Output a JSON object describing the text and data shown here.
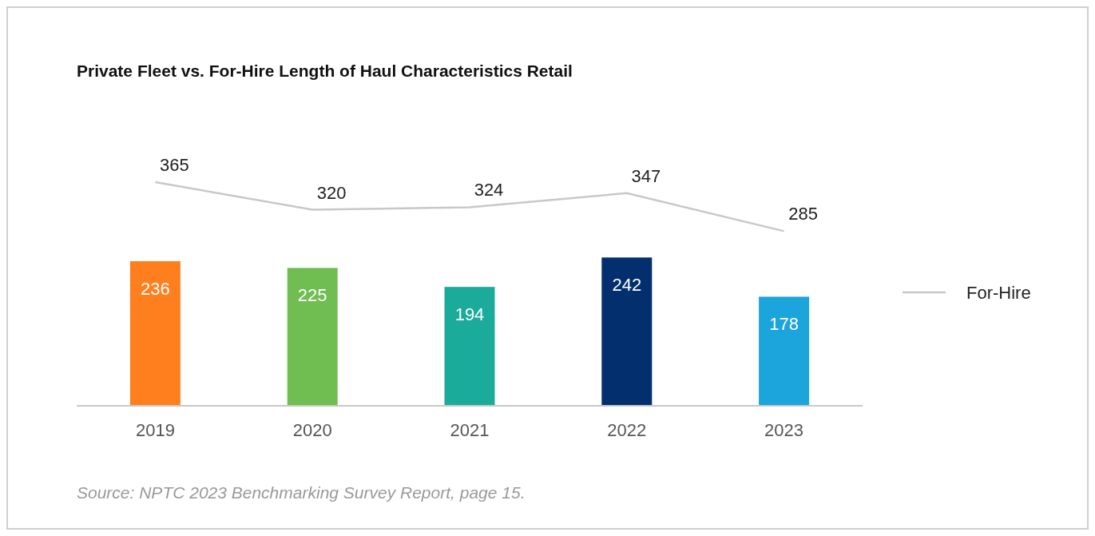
{
  "chart_data": {
    "type": "bar",
    "title": "Private Fleet vs. For-Hire Length of Haul Characteristics Retail",
    "categories": [
      "2019",
      "2020",
      "2021",
      "2022",
      "2023"
    ],
    "series": [
      {
        "colors": [
          "#ff7f1e",
          "#70bd52",
          "#1aab9b",
          "#032f6e",
          "#1ca4dc"
        ],
        "values": [
          236,
          225,
          194,
          242,
          178
        ]
      },
      {
        "type": "line",
        "name": "For-Hire",
        "color": "#c8c8c8",
        "values": [
          365,
          320,
          324,
          347,
          285
        ]
      }
    ],
    "data_labels": true,
    "legend": "right",
    "annotations": [
      "Source: NPTC 2023 Benchmarking Survey Report, page 15."
    ]
  }
}
